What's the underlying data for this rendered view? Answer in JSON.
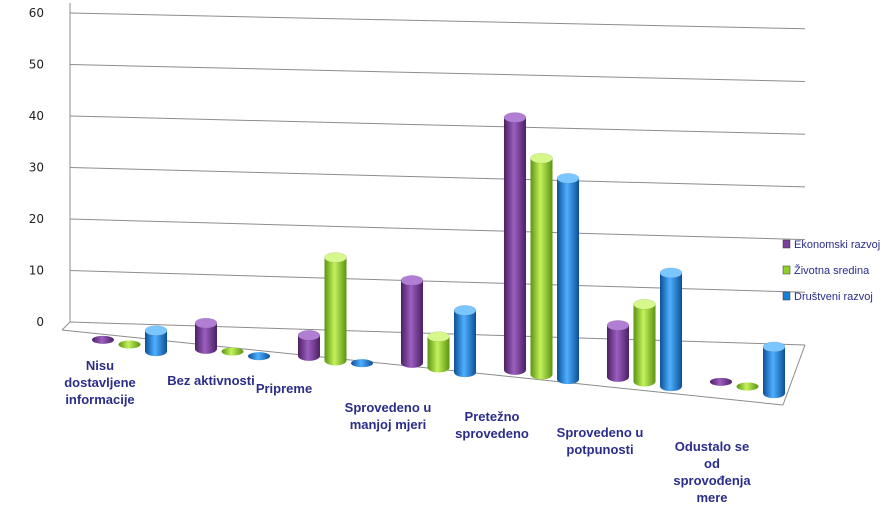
{
  "chart_data": {
    "type": "bar",
    "title": "",
    "categories": [
      "Nisu dostavljene informacije",
      "Bez aktivnosti",
      "Pripreme",
      "Sprovedeno u manjoj mjeri",
      "Pretežno sprovedeno",
      "Sprovedeno u potpunosti",
      "Odustalo se od sprovođenja mere"
    ],
    "series": [
      {
        "name": "Ekonomski razvoj",
        "color": "#7b3f98",
        "values": [
          0,
          5,
          4,
          16,
          49,
          10,
          0
        ]
      },
      {
        "name": "Životna sredina",
        "color": "#8fd22a",
        "values": [
          0,
          0,
          20,
          6,
          42,
          15,
          0
        ]
      },
      {
        "name": "Društveni razvoj",
        "color": "#1b7fd6",
        "values": [
          4,
          0,
          0,
          12,
          39,
          22,
          9
        ]
      }
    ],
    "ylim": [
      0,
      60
    ],
    "yticks": [
      0,
      10,
      20,
      30,
      40,
      50,
      60
    ],
    "grid": true,
    "legend_position": "right"
  }
}
